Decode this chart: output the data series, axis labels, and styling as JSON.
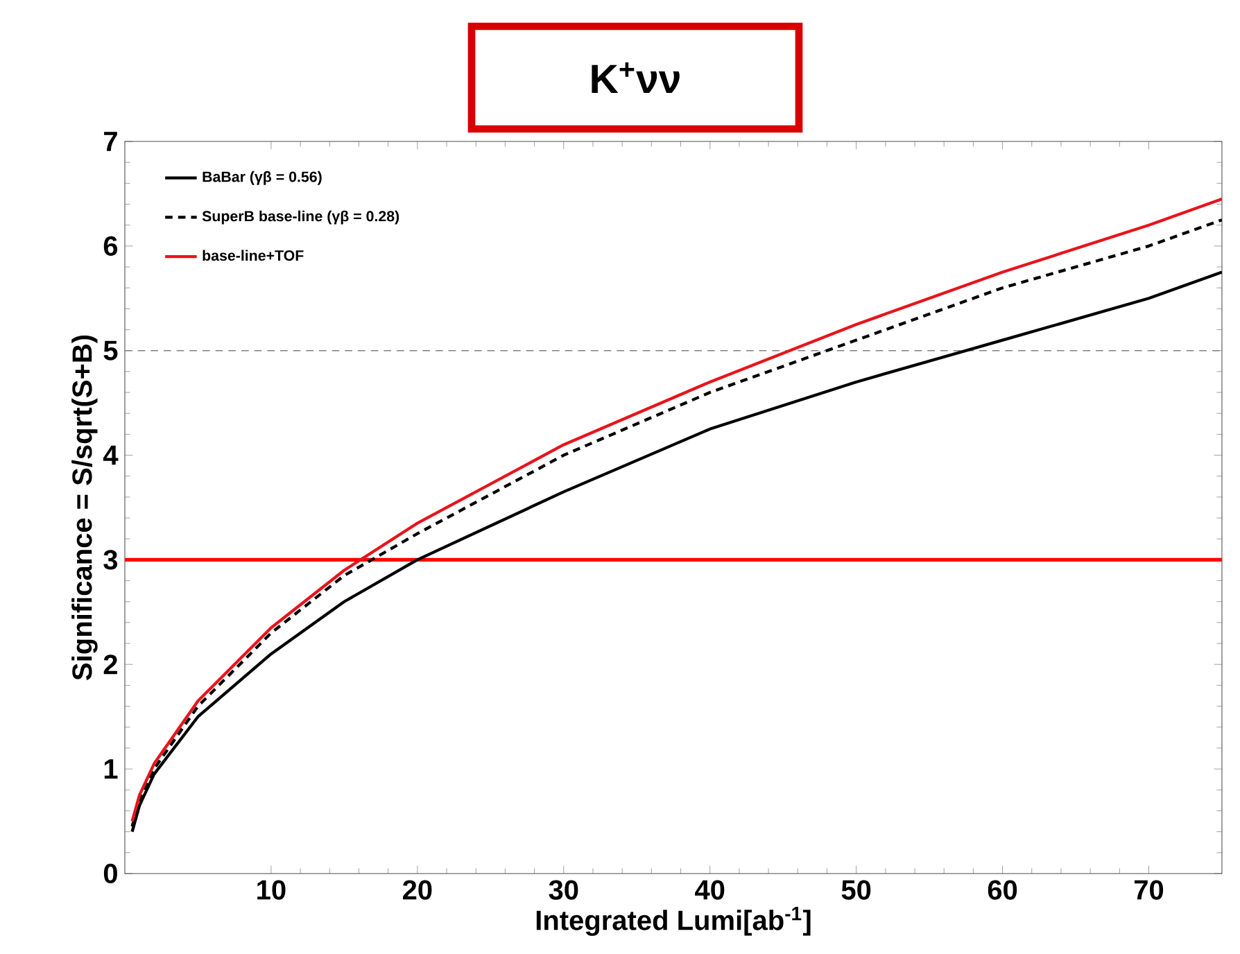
{
  "chart_data": {
    "type": "line",
    "title": "K$^{+}$νν",
    "xlabel": "Integrated Lumi[ab$^{-1}$]",
    "ylabel": "Significance = S/sqrt(S+B)",
    "xlim": [
      0,
      75
    ],
    "ylim": [
      0,
      7
    ],
    "xticks": [
      10,
      20,
      30,
      40,
      50,
      60,
      70
    ],
    "yticks": [
      0,
      1,
      2,
      3,
      4,
      5,
      6,
      7
    ],
    "grid": false,
    "legend": "top left",
    "marker": "none",
    "x": [
      0.5,
      1,
      2,
      5,
      10,
      15,
      20,
      30,
      40,
      50,
      60,
      70,
      75
    ],
    "series": [
      {
        "name": "BaBar (γβ = 0.56)",
        "color": "#000000",
        "line_style": "solid",
        "values": [
          0.4,
          0.65,
          0.95,
          1.5,
          2.1,
          2.6,
          3.0,
          3.65,
          4.25,
          4.7,
          5.1,
          5.5,
          5.75
        ]
      },
      {
        "name": "SuperB base-line (γβ = 0.28)",
        "color": "#000000",
        "line_style": "dashed",
        "values": [
          0.45,
          0.7,
          1.0,
          1.6,
          2.3,
          2.85,
          3.25,
          4.0,
          4.6,
          5.1,
          5.6,
          6.0,
          6.25
        ]
      },
      {
        "name": "base-line+TOF",
        "color": "#e8141c",
        "line_style": "solid",
        "values": [
          0.5,
          0.75,
          1.05,
          1.65,
          2.35,
          2.9,
          3.35,
          4.1,
          4.7,
          5.25,
          5.75,
          6.2,
          6.45
        ]
      }
    ],
    "ref_lines": [
      {
        "axis": "y",
        "value": 5,
        "color": "#808080",
        "line_style": "dashed"
      },
      {
        "axis": "y",
        "value": 3,
        "color": "#ff0000",
        "line_style": "solid"
      }
    ]
  }
}
